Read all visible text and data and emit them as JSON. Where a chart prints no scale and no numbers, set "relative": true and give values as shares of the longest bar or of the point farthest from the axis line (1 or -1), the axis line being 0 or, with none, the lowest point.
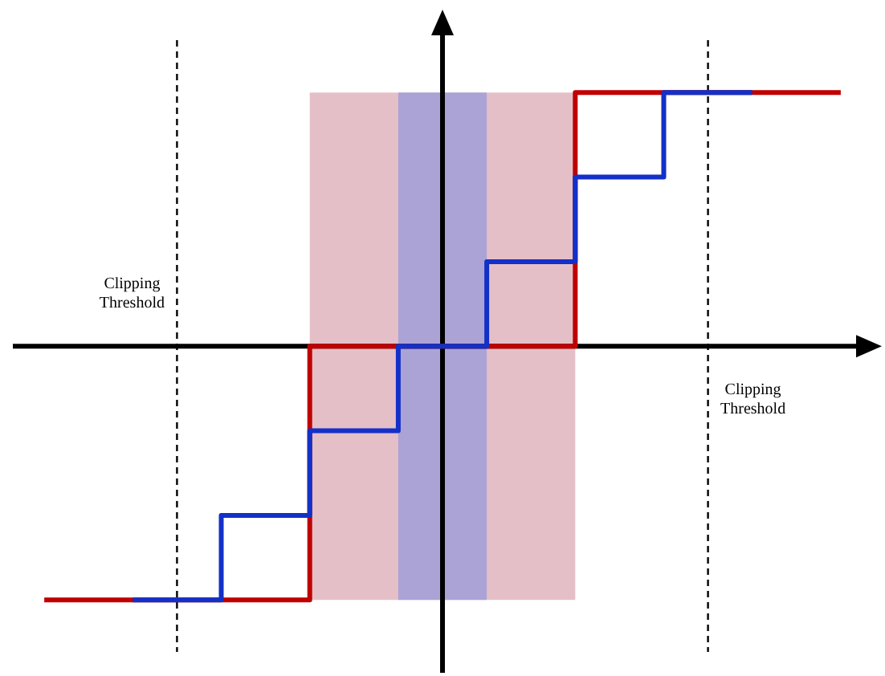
{
  "chart_data": {
    "type": "step",
    "relative": true,
    "marker": "none",
    "categories": [
      null,
      null,
      null,
      null,
      null,
      null,
      null,
      null,
      null,
      null
    ],
    "series": [
      {
        "color": "#c00000",
        "values": [
          -1,
          -1,
          -1,
          0,
          0,
          0,
          1,
          1,
          1,
          1
        ]
      },
      {
        "color": "#1330c8",
        "values": [
          null,
          -1,
          -0.667,
          -0.333,
          0,
          0.333,
          0.667,
          1,
          1,
          null
        ]
      }
    ],
    "annotations": [
      "Clipping Threshold",
      "Clipping Threshold"
    ]
  }
}
